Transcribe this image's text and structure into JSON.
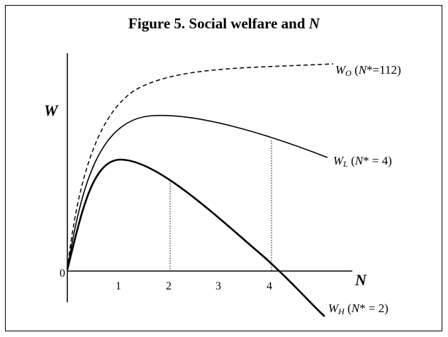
{
  "title": {
    "text": "Figure 5.  Social welfare and ",
    "var": "N"
  },
  "axes": {
    "y_label": "W",
    "x_label": "N",
    "origin": "0",
    "x_ticks": [
      "1",
      "2",
      "3",
      "4"
    ]
  },
  "curves": [
    {
      "symbol": "W",
      "sub": "O",
      "open": "(",
      "var": "N",
      "rest": "*=112)"
    },
    {
      "symbol": "W",
      "sub": "L",
      "open": "(",
      "var": "N",
      "rest": "* = 4)"
    },
    {
      "symbol": "W",
      "sub": "H",
      "open": "(",
      "var": "N",
      "rest": "* = 2)"
    }
  ]
}
